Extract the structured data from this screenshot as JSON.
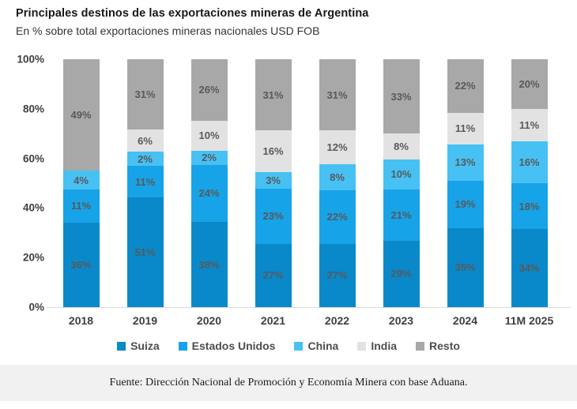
{
  "title": "Principales destinos de las exportaciones mineras de Argentina",
  "subtitle": "En % sobre total exportaciones mineras nacionales USD FOB",
  "chart_data": {
    "type": "bar",
    "stacked": true,
    "percent_stacked": true,
    "title": "Principales destinos de las exportaciones mineras de Argentina",
    "subtitle": "En % sobre total exportaciones mineras nacionales USD FOB",
    "categories": [
      "2018",
      "2019",
      "2020",
      "2021",
      "2022",
      "2023",
      "2024",
      "11M 2025"
    ],
    "series": [
      {
        "name": "Suiza",
        "color": "#0989ca",
        "values": [
          36,
          51,
          38,
          27,
          27,
          29,
          35,
          34
        ]
      },
      {
        "name": "Estados Unidos",
        "color": "#17a3e8",
        "values": [
          11,
          11,
          24,
          23,
          22,
          21,
          19,
          18
        ]
      },
      {
        "name": "China",
        "color": "#47c1f3",
        "values": [
          4,
          2,
          2,
          3,
          8,
          10,
          13,
          16
        ]
      },
      {
        "name": "India",
        "color": "#e2e2e2",
        "values": [
          0,
          6,
          10,
          16,
          12,
          8,
          11,
          11
        ]
      },
      {
        "name": "Resto",
        "color": "#a8a8a8",
        "values": [
          49,
          31,
          26,
          31,
          31,
          33,
          22,
          20
        ]
      }
    ],
    "data_label_suffix": "%",
    "yticks": [
      "100%",
      "80%",
      "60%",
      "40%",
      "20%",
      "0%"
    ],
    "ylim": [
      0,
      100
    ],
    "grid": false,
    "legend_position": "bottom",
    "label_color": "#595959"
  },
  "footer": {
    "source": "Fuente: Dirección Nacional de Promoción y Economía Minera con base Aduana."
  },
  "colors": {
    "background": "#ffffff",
    "footer_band": "#f1f1f1",
    "axis_line": "#dcdcdc",
    "axis_text": "#3f3f3f",
    "title_text": "#181818"
  }
}
